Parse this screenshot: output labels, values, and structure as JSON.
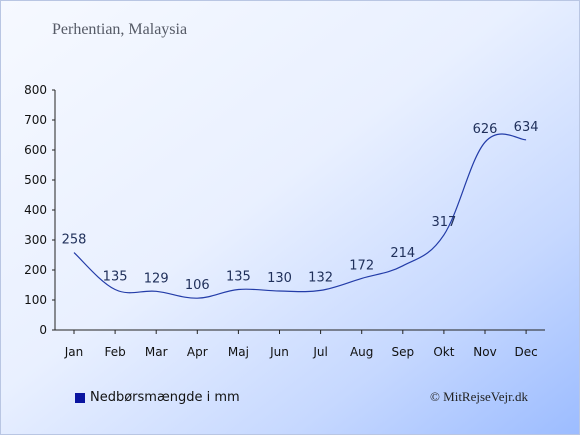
{
  "subtitle": "Perhentian, Malaysia",
  "copyright": "© MitRejseVejr.dk",
  "colors": {
    "line": "#233ca8",
    "legend_swatch": "#0a14a0",
    "axis": "#222222",
    "data_label": "#1f2f5a"
  },
  "chart_data": {
    "type": "line",
    "title": "",
    "xlabel": "",
    "ylabel": "",
    "categories": [
      "Jan",
      "Feb",
      "Mar",
      "Apr",
      "Maj",
      "Jun",
      "Jul",
      "Aug",
      "Sep",
      "Okt",
      "Nov",
      "Dec"
    ],
    "series": [
      {
        "name": "Nedbørsmængde i mm",
        "values": [
          258,
          135,
          129,
          106,
          135,
          130,
          132,
          172,
          214,
          317,
          626,
          634
        ]
      }
    ],
    "ylim": [
      0,
      800
    ],
    "yticks": [
      0,
      100,
      200,
      300,
      400,
      500,
      600,
      700,
      800
    ],
    "grid": false,
    "legend": "bottom-left"
  }
}
